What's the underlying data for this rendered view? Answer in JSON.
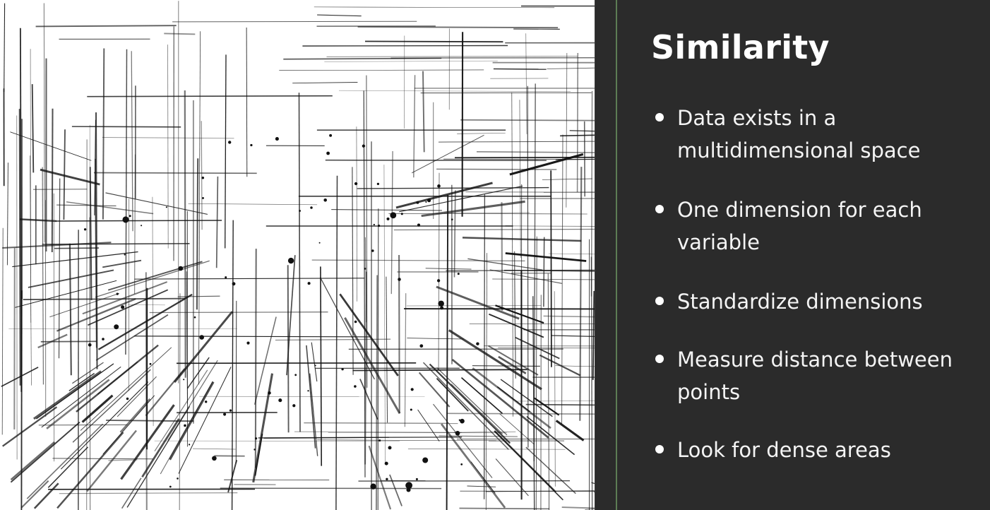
{
  "slide": {
    "title": "Similarity",
    "bullets": [
      "Data exists in a multidimensional space",
      "One dimension for each variable",
      "Standardize dimensions",
      "Measure distance between points",
      "Look for dense areas"
    ]
  },
  "art": {
    "description_icon": "multidimensional-line-artwork"
  },
  "colors": {
    "panel_background": "#2b2b2b",
    "accent": "#5d7d54",
    "text": "#ffffff",
    "artwork_background": "#ffffff",
    "artwork_lines": "#111111"
  }
}
